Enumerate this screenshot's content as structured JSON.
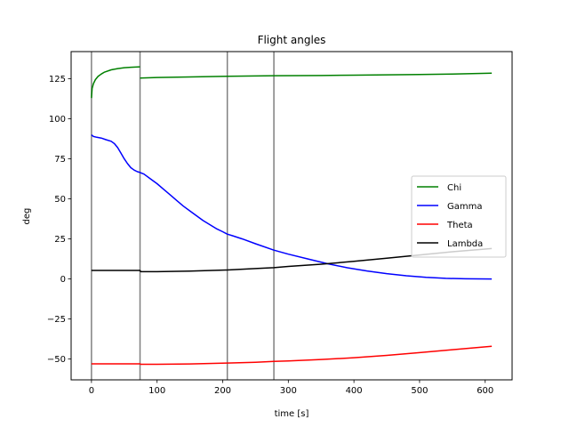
{
  "chart_data": {
    "type": "line",
    "title": "Flight angles",
    "xlabel": "time [s]",
    "ylabel": "deg",
    "xlim": [
      -31,
      641
    ],
    "ylim": [
      -63,
      142
    ],
    "xticks": [
      0,
      100,
      200,
      300,
      400,
      500,
      600
    ],
    "yticks": [
      -50,
      -25,
      0,
      25,
      50,
      75,
      100,
      125
    ],
    "grid": false,
    "legend": "center-right",
    "vlines": [
      0,
      74,
      207,
      278
    ],
    "series": [
      {
        "name": "Chi",
        "color": "#008000",
        "segments": [
          [
            [
              0,
              113
            ],
            [
              1,
              119
            ],
            [
              3,
              122
            ],
            [
              6,
              124.5
            ],
            [
              10,
              126.5
            ],
            [
              15,
              128
            ],
            [
              20,
              129.2
            ],
            [
              30,
              130.6
            ],
            [
              40,
              131.4
            ],
            [
              50,
              131.9
            ],
            [
              60,
              132.2
            ],
            [
              74,
              132.5
            ]
          ],
          [
            [
              74,
              125.5
            ],
            [
              100,
              125.8
            ],
            [
              150,
              126.2
            ],
            [
              207,
              126.6
            ],
            [
              278,
              126.9
            ],
            [
              350,
              127.1
            ],
            [
              400,
              127.3
            ],
            [
              450,
              127.5
            ],
            [
              500,
              127.7
            ],
            [
              550,
              128
            ],
            [
              610,
              128.5
            ]
          ]
        ]
      },
      {
        "name": "Gamma",
        "color": "#0000ff",
        "segments": [
          [
            [
              0,
              90
            ],
            [
              3,
              89
            ],
            [
              8,
              88.5
            ],
            [
              15,
              88
            ],
            [
              22,
              87
            ],
            [
              30,
              86
            ],
            [
              35,
              84.5
            ],
            [
              40,
              82
            ],
            [
              45,
              78.5
            ],
            [
              50,
              75
            ],
            [
              55,
              72
            ],
            [
              60,
              69.5
            ],
            [
              65,
              68
            ],
            [
              70,
              67
            ],
            [
              74,
              66.5
            ],
            [
              80,
              65.5
            ],
            [
              90,
              62.5
            ],
            [
              100,
              59.5
            ],
            [
              110,
              56
            ],
            [
              120,
              52.5
            ],
            [
              130,
              49
            ],
            [
              140,
              45.5
            ],
            [
              150,
              42.5
            ],
            [
              160,
              39.5
            ],
            [
              170,
              36.5
            ],
            [
              180,
              34
            ],
            [
              190,
              31.5
            ],
            [
              200,
              29.5
            ],
            [
              207,
              28
            ],
            [
              215,
              27
            ],
            [
              230,
              25
            ],
            [
              250,
              22
            ],
            [
              278,
              18
            ],
            [
              300,
              15.5
            ],
            [
              330,
              12.5
            ],
            [
              360,
              9.5
            ],
            [
              390,
              7
            ],
            [
              420,
              5
            ],
            [
              450,
              3.3
            ],
            [
              480,
              2
            ],
            [
              510,
              1
            ],
            [
              540,
              0.4
            ],
            [
              570,
              0.1
            ],
            [
              610,
              0
            ]
          ]
        ]
      },
      {
        "name": "Theta",
        "color": "#ff0000",
        "segments": [
          [
            [
              0,
              -53
            ],
            [
              74,
              -53
            ],
            [
              75,
              -53.3
            ],
            [
              100,
              -53.3
            ],
            [
              150,
              -53.1
            ],
            [
              207,
              -52.5
            ],
            [
              250,
              -52
            ],
            [
              278,
              -51.5
            ],
            [
              300,
              -51.2
            ],
            [
              350,
              -50.3
            ],
            [
              400,
              -49.2
            ],
            [
              450,
              -47.7
            ],
            [
              500,
              -46
            ],
            [
              550,
              -44.2
            ],
            [
              610,
              -42
            ]
          ]
        ]
      },
      {
        "name": "Lambda",
        "color": "#000000",
        "segments": [
          [
            [
              0,
              5.3
            ],
            [
              74,
              5.3
            ],
            [
              75,
              4.6
            ],
            [
              100,
              4.6
            ],
            [
              150,
              4.9
            ],
            [
              207,
              5.6
            ],
            [
              250,
              6.5
            ],
            [
              278,
              7.1
            ],
            [
              300,
              7.8
            ],
            [
              350,
              9.2
            ],
            [
              400,
              11
            ],
            [
              450,
              13
            ],
            [
              500,
              15
            ],
            [
              550,
              17
            ],
            [
              610,
              19
            ]
          ]
        ]
      }
    ]
  }
}
